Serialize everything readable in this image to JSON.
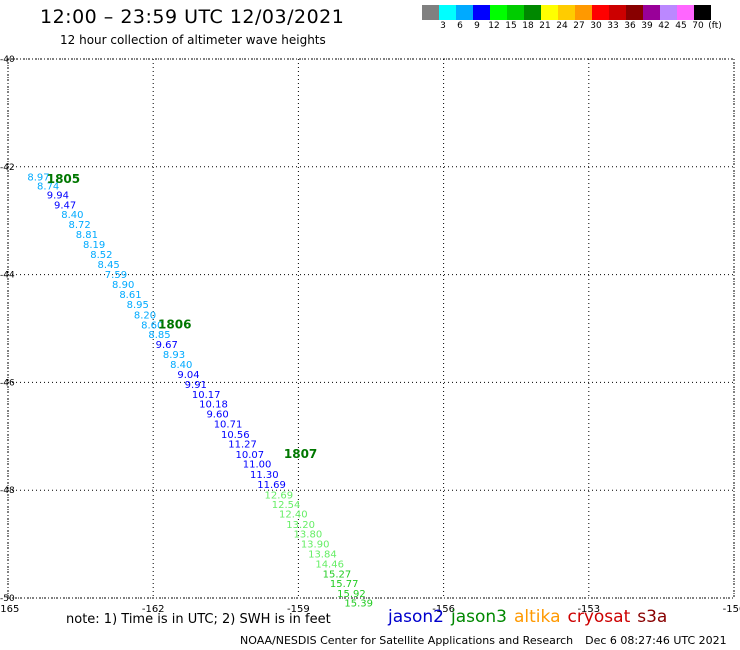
{
  "header": {
    "title": "12:00 – 23:59 UTC 12/03/2021",
    "subtitle": "12 hour collection of altimeter wave heights"
  },
  "legend": {
    "colors": [
      "#808080",
      "#00ffff",
      "#00aaff",
      "#0000ff",
      "#00ff00",
      "#00cc00",
      "#008800",
      "#ffff00",
      "#ffcc00",
      "#ff9900",
      "#ff0000",
      "#cc0000",
      "#880000",
      "#990099",
      "#bb88ff",
      "#ff66ff",
      "#000000"
    ],
    "labels": [
      "3",
      "6",
      "9",
      "12",
      "15",
      "18",
      "21",
      "24",
      "27",
      "30",
      "33",
      "36",
      "39",
      "42",
      "45",
      "70",
      "(ft)"
    ]
  },
  "chart_data": {
    "type": "scatter",
    "title": "12:00 – 23:59 UTC 12/03/2021",
    "subtitle": "12 hour collection of altimeter wave heights",
    "xlim": [
      -165,
      -150
    ],
    "ylim": [
      -50,
      -40
    ],
    "x_ticks": [
      "-165",
      "-162",
      "-159",
      "-156",
      "-153",
      "-150"
    ],
    "y_ticks": [
      "-40",
      "-42",
      "-44",
      "-46",
      "-48",
      "-50"
    ],
    "grid": true,
    "time_labels": [
      {
        "text": "1805",
        "lon": -164.2,
        "lat": -42.3
      },
      {
        "text": "1806",
        "lon": -161.9,
        "lat": -45.0
      },
      {
        "text": "1807",
        "lon": -159.3,
        "lat": -47.4
      }
    ],
    "points": [
      {
        "lon": -164.6,
        "lat": -42.25,
        "swh": "8.97",
        "color": "#00aaff"
      },
      {
        "lon": -164.4,
        "lat": -42.42,
        "swh": "8.74",
        "color": "#00aaff"
      },
      {
        "lon": -164.2,
        "lat": -42.59,
        "swh": "9.94",
        "color": "#0000ff"
      },
      {
        "lon": -164.05,
        "lat": -42.77,
        "swh": "9.47",
        "color": "#0000ff"
      },
      {
        "lon": -163.9,
        "lat": -42.95,
        "swh": "8.40",
        "color": "#00aaff"
      },
      {
        "lon": -163.75,
        "lat": -43.14,
        "swh": "8.72",
        "color": "#00aaff"
      },
      {
        "lon": -163.6,
        "lat": -43.32,
        "swh": "8.81",
        "color": "#00aaff"
      },
      {
        "lon": -163.45,
        "lat": -43.51,
        "swh": "8.19",
        "color": "#00aaff"
      },
      {
        "lon": -163.3,
        "lat": -43.69,
        "swh": "8.52",
        "color": "#00aaff"
      },
      {
        "lon": -163.15,
        "lat": -43.88,
        "swh": "8.45",
        "color": "#00aaff"
      },
      {
        "lon": -163.0,
        "lat": -44.06,
        "swh": "7.59",
        "color": "#00aaff"
      },
      {
        "lon": -162.85,
        "lat": -44.25,
        "swh": "8.90",
        "color": "#00aaff"
      },
      {
        "lon": -162.7,
        "lat": -44.43,
        "swh": "8.61",
        "color": "#00aaff"
      },
      {
        "lon": -162.55,
        "lat": -44.62,
        "swh": "8.95",
        "color": "#00aaff"
      },
      {
        "lon": -162.4,
        "lat": -44.81,
        "swh": "8.20",
        "color": "#00aaff"
      },
      {
        "lon": -162.25,
        "lat": -45.0,
        "swh": "8.60",
        "color": "#00aaff"
      },
      {
        "lon": -162.1,
        "lat": -45.18,
        "swh": "8.85",
        "color": "#00aaff"
      },
      {
        "lon": -161.95,
        "lat": -45.36,
        "swh": "9.67",
        "color": "#0000ff"
      },
      {
        "lon": -161.8,
        "lat": -45.55,
        "swh": "8.93",
        "color": "#00aaff"
      },
      {
        "lon": -161.65,
        "lat": -45.73,
        "swh": "8.40",
        "color": "#00aaff"
      },
      {
        "lon": -161.5,
        "lat": -45.92,
        "swh": "9.04",
        "color": "#0000ff"
      },
      {
        "lon": -161.35,
        "lat": -46.1,
        "swh": "9.91",
        "color": "#0000ff"
      },
      {
        "lon": -161.2,
        "lat": -46.29,
        "swh": "10.17",
        "color": "#0000ff"
      },
      {
        "lon": -161.05,
        "lat": -46.47,
        "swh": "10.18",
        "color": "#0000ff"
      },
      {
        "lon": -160.9,
        "lat": -46.65,
        "swh": "9.60",
        "color": "#0000ff"
      },
      {
        "lon": -160.75,
        "lat": -46.84,
        "swh": "10.71",
        "color": "#0000ff"
      },
      {
        "lon": -160.6,
        "lat": -47.03,
        "swh": "10.56",
        "color": "#0000ff"
      },
      {
        "lon": -160.45,
        "lat": -47.21,
        "swh": "11.27",
        "color": "#0000ff"
      },
      {
        "lon": -160.3,
        "lat": -47.4,
        "swh": "10.07",
        "color": "#0000ff"
      },
      {
        "lon": -160.15,
        "lat": -47.58,
        "swh": "11.00",
        "color": "#0000ff"
      },
      {
        "lon": -160.0,
        "lat": -47.77,
        "swh": "11.30",
        "color": "#0000ff"
      },
      {
        "lon": -159.85,
        "lat": -47.96,
        "swh": "11.69",
        "color": "#0000ff"
      },
      {
        "lon": -159.7,
        "lat": -48.15,
        "swh": "12.69",
        "color": "#66ee66"
      },
      {
        "lon": -159.55,
        "lat": -48.33,
        "swh": "12.54",
        "color": "#66ee66"
      },
      {
        "lon": -159.4,
        "lat": -48.51,
        "swh": "12.40",
        "color": "#66ee66"
      },
      {
        "lon": -159.25,
        "lat": -48.7,
        "swh": "13.20",
        "color": "#66ee66"
      },
      {
        "lon": -159.1,
        "lat": -48.88,
        "swh": "13.80",
        "color": "#66ee66"
      },
      {
        "lon": -158.95,
        "lat": -49.06,
        "swh": "13.90",
        "color": "#66ee66"
      },
      {
        "lon": -158.8,
        "lat": -49.25,
        "swh": "13.84",
        "color": "#66ee66"
      },
      {
        "lon": -158.65,
        "lat": -49.43,
        "swh": "14.46",
        "color": "#66ee66"
      },
      {
        "lon": -158.5,
        "lat": -49.62,
        "swh": "15.27",
        "color": "#22cc22"
      },
      {
        "lon": -158.35,
        "lat": -49.8,
        "swh": "15.77",
        "color": "#22cc22"
      },
      {
        "lon": -158.2,
        "lat": -49.98,
        "swh": "15.92",
        "color": "#22cc22"
      },
      {
        "lon": -158.05,
        "lat": -50.16,
        "swh": "15.39",
        "color": "#22cc22"
      }
    ]
  },
  "note": "note:  1) Time is in UTC; 2) SWH is in feet",
  "satellites": [
    {
      "name": "jason2",
      "color": "#0000cc"
    },
    {
      "name": "jason3",
      "color": "#008800"
    },
    {
      "name": "altika",
      "color": "#ff9900"
    },
    {
      "name": "cryosat",
      "color": "#cc0000"
    },
    {
      "name": "s3a",
      "color": "#880000"
    }
  ],
  "footer": {
    "credit": "NOAA/NESDIS Center for Satellite Applications and Research",
    "timestamp": "Dec  6 08:27:46 UTC 2021"
  }
}
